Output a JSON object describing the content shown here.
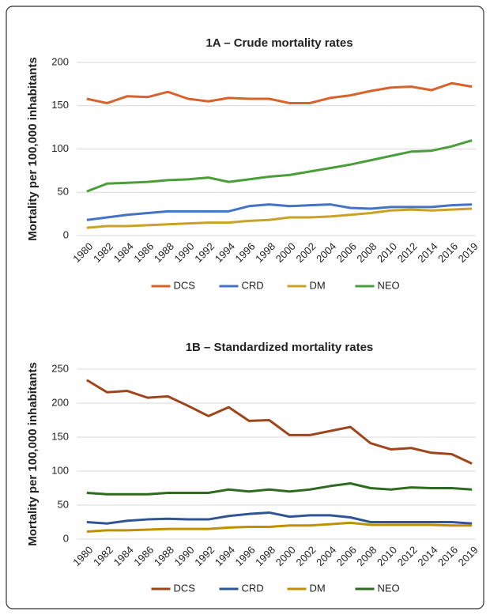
{
  "chart_data": [
    {
      "type": "line",
      "title": "1A – Crude mortality rates",
      "ylabel": "Mortality per 100,000 inhabitants",
      "categories": [
        "1980",
        "1982",
        "1984",
        "1986",
        "1988",
        "1990",
        "1992",
        "1994",
        "1996",
        "1998",
        "2000",
        "2002",
        "2004",
        "2006",
        "2008",
        "2010",
        "2012",
        "2014",
        "2016",
        "2019"
      ],
      "series": [
        {
          "name": "DCS",
          "color": "#d9622b",
          "values": [
            158,
            153,
            161,
            160,
            166,
            158,
            155,
            159,
            158,
            158,
            153,
            153,
            159,
            162,
            167,
            171,
            172,
            168,
            176,
            172
          ]
        },
        {
          "name": "CRD",
          "color": "#4472c4",
          "values": [
            18,
            21,
            24,
            26,
            28,
            28,
            28,
            28,
            34,
            36,
            34,
            35,
            36,
            32,
            31,
            33,
            33,
            33,
            35,
            36
          ]
        },
        {
          "name": "DM",
          "color": "#c9a227",
          "values": [
            9,
            11,
            11,
            12,
            13,
            14,
            15,
            15,
            17,
            18,
            21,
            21,
            22,
            24,
            26,
            29,
            30,
            29,
            30,
            31
          ]
        },
        {
          "name": "NEO",
          "color": "#4a9e3a",
          "values": [
            51,
            60,
            61,
            62,
            64,
            65,
            67,
            62,
            65,
            68,
            70,
            74,
            78,
            82,
            87,
            92,
            97,
            98,
            103,
            110
          ]
        }
      ],
      "ylim": [
        0,
        200
      ],
      "yticks": [
        0,
        50,
        100,
        150,
        200
      ],
      "grid": true,
      "legend": "bottom"
    },
    {
      "type": "line",
      "title": "1B – Standardized mortality rates",
      "ylabel": "Mortality per 100,000 inhabitants",
      "categories": [
        "1980",
        "1982",
        "1984",
        "1986",
        "1988",
        "1990",
        "1992",
        "1994",
        "1996",
        "1998",
        "2000",
        "2002",
        "2004",
        "2006",
        "2008",
        "2010",
        "2012",
        "2014",
        "2016",
        "2019"
      ],
      "series": [
        {
          "name": "DCS",
          "color": "#a0441a",
          "values": [
            234,
            216,
            218,
            208,
            210,
            196,
            181,
            194,
            174,
            175,
            153,
            153,
            159,
            165,
            141,
            132,
            134,
            127,
            125,
            111
          ]
        },
        {
          "name": "CRD",
          "color": "#2f5597",
          "values": [
            25,
            23,
            27,
            29,
            30,
            29,
            29,
            34,
            37,
            39,
            33,
            35,
            35,
            32,
            25,
            25,
            25,
            25,
            25,
            23
          ]
        },
        {
          "name": "DM",
          "color": "#bf9000",
          "values": [
            11,
            13,
            13,
            14,
            15,
            15,
            15,
            17,
            18,
            18,
            20,
            20,
            22,
            24,
            21,
            21,
            21,
            21,
            20,
            20
          ]
        },
        {
          "name": "NEO",
          "color": "#2e6b1f",
          "values": [
            68,
            66,
            66,
            66,
            68,
            68,
            68,
            73,
            70,
            73,
            70,
            73,
            78,
            82,
            75,
            73,
            76,
            75,
            75,
            73
          ]
        }
      ],
      "ylim": [
        0,
        250
      ],
      "yticks": [
        0,
        50,
        100,
        150,
        200,
        250
      ],
      "grid": true,
      "legend": "bottom"
    }
  ]
}
